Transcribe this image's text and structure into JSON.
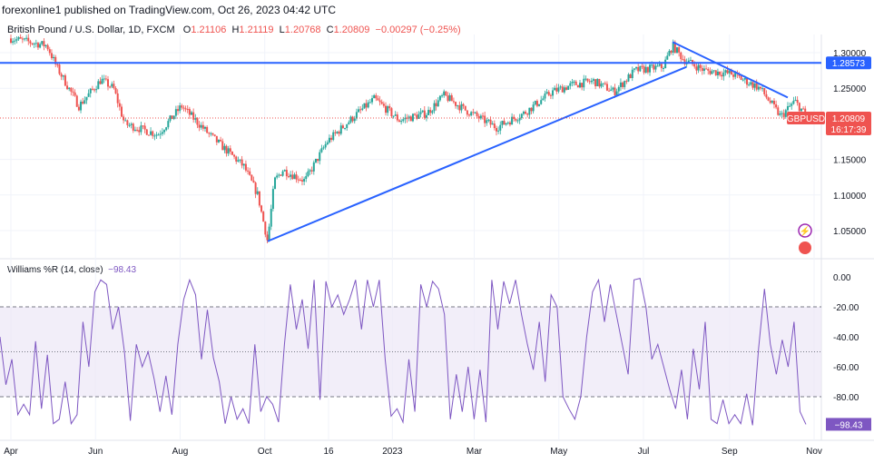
{
  "header": {
    "publisher": "forexonline1 published on TradingView.com, Oct 26, 2023 04:42 UTC"
  },
  "legend": {
    "symbol": "British Pound / U.S. Dollar, 1D, FXCM",
    "o_label": "O",
    "o": "1.21106",
    "h_label": "H",
    "h": "1.21119",
    "l_label": "L",
    "l": "1.20768",
    "c_label": "C",
    "c": "1.20809",
    "change": "−0.00297 (−0.25%)"
  },
  "indicator": {
    "name": "Williams %R (14, close)",
    "value": "−98.43"
  },
  "colors": {
    "up": "#26a69a",
    "down": "#ef5350",
    "trend": "#2962ff",
    "wr": "#7e57c2"
  },
  "chart_data": [
    {
      "type": "candlestick",
      "symbol": "GBPUSD",
      "ylim": [
        1.0,
        1.33
      ],
      "yticks": [
        "1.30000",
        "1.25000",
        "1.15000",
        "1.10000",
        "1.05000"
      ],
      "ytick_values": [
        1.3,
        1.25,
        1.15,
        1.1,
        1.05
      ],
      "last_price": "1.20809",
      "countdown": "16:17:39",
      "symbol_tag": "GBPUSD",
      "hline": {
        "value": 1.28573,
        "label": "1.28573"
      },
      "trendlines": [
        {
          "from": [
            185,
            1.035
          ],
          "to": [
            487,
            1.28
          ]
        },
        {
          "from": [
            477,
            1.315
          ],
          "to": [
            560,
            1.237
          ]
        }
      ],
      "path_day_price": [
        [
          0,
          1.32
        ],
        [
          26,
          1.31
        ],
        [
          33,
          1.28
        ],
        [
          49,
          1.225
        ],
        [
          65,
          1.262
        ],
        [
          74,
          1.25
        ],
        [
          82,
          1.2
        ],
        [
          106,
          1.185
        ],
        [
          123,
          1.225
        ],
        [
          143,
          1.185
        ],
        [
          168,
          1.14
        ],
        [
          178,
          1.1
        ],
        [
          185,
          1.035
        ],
        [
          190,
          1.12
        ],
        [
          196,
          1.135
        ],
        [
          212,
          1.12
        ],
        [
          228,
          1.175
        ],
        [
          250,
          1.215
        ],
        [
          262,
          1.235
        ],
        [
          280,
          1.205
        ],
        [
          300,
          1.215
        ],
        [
          312,
          1.24
        ],
        [
          327,
          1.22
        ],
        [
          350,
          1.195
        ],
        [
          370,
          1.215
        ],
        [
          390,
          1.245
        ],
        [
          405,
          1.255
        ],
        [
          420,
          1.26
        ],
        [
          435,
          1.245
        ],
        [
          450,
          1.275
        ],
        [
          470,
          1.28
        ],
        [
          477,
          1.31
        ],
        [
          485,
          1.29
        ],
        [
          500,
          1.275
        ],
        [
          520,
          1.27
        ],
        [
          540,
          1.25
        ],
        [
          555,
          1.21
        ],
        [
          565,
          1.232
        ],
        [
          572,
          1.215
        ],
        [
          576,
          1.208
        ]
      ]
    },
    {
      "type": "line",
      "name": "Williams %R",
      "ylim": [
        -100,
        0
      ],
      "yticks": [
        "0.00",
        "-20.00",
        "-40.00",
        "-60.00",
        "-80.00"
      ],
      "ytick_values": [
        0,
        -20,
        -40,
        -60,
        -80
      ],
      "bands": [
        -20,
        -50,
        -80
      ],
      "xticks": [
        "Apr",
        "Jun",
        "Aug",
        "Oct",
        "16",
        "2023",
        "Mar",
        "May",
        "Jul",
        "Sep",
        "Nov"
      ],
      "xtick_days": [
        0,
        61,
        122,
        183,
        229,
        275,
        334,
        395,
        456,
        518,
        579
      ],
      "values": [
        -40,
        -72,
        -55,
        -92,
        -85,
        -92,
        -43,
        -88,
        -52,
        -98,
        -95,
        -70,
        -98,
        -92,
        -30,
        -60,
        -10,
        -2,
        -5,
        -35,
        -20,
        -50,
        -96,
        -45,
        -60,
        -50,
        -68,
        -90,
        -66,
        -92,
        -45,
        -15,
        -2,
        -12,
        -55,
        -22,
        -54,
        -70,
        -98,
        -80,
        -95,
        -88,
        -98,
        -45,
        -90,
        -80,
        -85,
        -97,
        -45,
        -5,
        -35,
        -15,
        -48,
        -2,
        -82,
        -3,
        -20,
        -12,
        -25,
        -15,
        -2,
        -35,
        -2,
        -20,
        -2,
        -55,
        -93,
        -88,
        -97,
        -55,
        -90,
        -5,
        -20,
        -3,
        -8,
        -25,
        -95,
        -65,
        -90,
        -60,
        -95,
        -62,
        -97,
        -2,
        -35,
        -3,
        -18,
        -2,
        -25,
        -45,
        -62,
        -30,
        -70,
        -12,
        -20,
        -80,
        -88,
        -95,
        -80,
        -40,
        -10,
        -2,
        -30,
        -5,
        -25,
        -45,
        -65,
        -2,
        -1,
        -20,
        -55,
        -45,
        -60,
        -75,
        -88,
        -62,
        -95,
        -48,
        -75,
        -30,
        -95,
        -98,
        -82,
        -98,
        -92,
        -98,
        -78,
        -99,
        -48,
        -8,
        -45,
        -65,
        -42,
        -60,
        -30,
        -90,
        -98.43
      ]
    }
  ]
}
